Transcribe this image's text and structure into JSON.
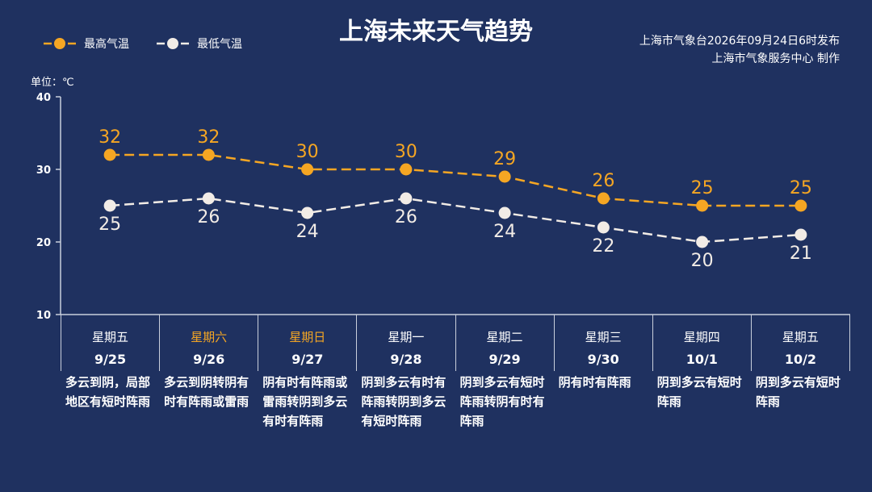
{
  "title": "上海未来天气趋势",
  "source": {
    "line1": "上海市气象台2026年09月24日6时发布",
    "line2": "上海市气象服务中心 制作"
  },
  "unit_label": "单位：℃",
  "colors": {
    "background": "#1f3160",
    "high": "#f5a623",
    "low": "#f2ece6",
    "axis": "#c9cfdc"
  },
  "chart_data": {
    "type": "line",
    "title": "上海未来天气趋势",
    "ylabel": "单位：℃",
    "ylim": [
      10,
      40
    ],
    "yticks": [
      10,
      20,
      30,
      40
    ],
    "grid": false,
    "legend_position": "top-left",
    "categories": [
      "9/25",
      "9/26",
      "9/27",
      "9/28",
      "9/29",
      "9/30",
      "10/1",
      "10/2"
    ],
    "series": [
      {
        "name": "最高气温",
        "values": [
          32,
          32,
          30,
          30,
          29,
          26,
          25,
          25
        ]
      },
      {
        "name": "最低气温",
        "values": [
          25,
          26,
          24,
          26,
          24,
          22,
          20,
          21
        ]
      }
    ]
  },
  "days": [
    {
      "weekday": "星期五",
      "date": "9/25",
      "weekend": false,
      "desc": "多云到阴，局部地区有短时阵雨"
    },
    {
      "weekday": "星期六",
      "date": "9/26",
      "weekend": true,
      "desc": "多云到阴转阴有时有阵雨或雷雨"
    },
    {
      "weekday": "星期日",
      "date": "9/27",
      "weekend": true,
      "desc": "阴有时有阵雨或雷雨转阴到多云有时有阵雨"
    },
    {
      "weekday": "星期一",
      "date": "9/28",
      "weekend": false,
      "desc": "阴到多云有时有阵雨转阴到多云有短时阵雨"
    },
    {
      "weekday": "星期二",
      "date": "9/29",
      "weekend": false,
      "desc": "阴到多云有短时阵雨转阴有时有阵雨"
    },
    {
      "weekday": "星期三",
      "date": "9/30",
      "weekend": false,
      "desc": "阴有时有阵雨"
    },
    {
      "weekday": "星期四",
      "date": "10/1",
      "weekend": false,
      "desc": "阴到多云有短时阵雨"
    },
    {
      "weekday": "星期五",
      "date": "10/2",
      "weekend": false,
      "desc": "阴到多云有短时阵雨"
    }
  ]
}
